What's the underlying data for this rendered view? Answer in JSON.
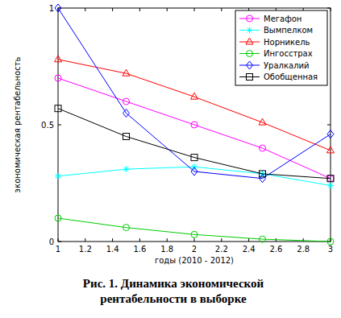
{
  "chart_data": {
    "type": "line",
    "title": "Рис. 1. Динамика экономической рентабельности в выборке",
    "x_label": "годы (2010 - 2012)",
    "y_label": "экономическая рентабельность",
    "x": [
      1,
      1.5,
      2,
      2.5,
      3
    ],
    "series": [
      {
        "name": "Мегафон",
        "color": "#ff00ff",
        "marker": "circle",
        "values": [
          0.7,
          0.6,
          0.5,
          0.4,
          0.27
        ]
      },
      {
        "name": "Вымпелком",
        "color": "#00ffff",
        "marker": "star",
        "values": [
          0.28,
          0.31,
          0.32,
          0.29,
          0.24
        ]
      },
      {
        "name": "Норникель",
        "color": "#ff0000",
        "marker": "triangle",
        "values": [
          0.78,
          0.72,
          0.62,
          0.51,
          0.39
        ]
      },
      {
        "name": "Ингосстрах",
        "color": "#00cc00",
        "marker": "circle",
        "values": [
          0.1,
          0.06,
          0.03,
          0.01,
          0.0
        ]
      },
      {
        "name": "Уралкалий",
        "color": "#0000ff",
        "marker": "diamond",
        "values": [
          1.0,
          0.55,
          0.3,
          0.27,
          0.46
        ]
      },
      {
        "name": "Обобщенная",
        "color": "#000000",
        "marker": "square",
        "values": [
          0.57,
          0.45,
          0.36,
          0.29,
          0.27
        ]
      }
    ],
    "xlim": [
      1,
      3
    ],
    "ylim": [
      0,
      1
    ],
    "xticks": [
      1,
      1.2,
      1.4,
      1.6,
      1.8,
      2,
      2.2,
      2.4,
      2.6,
      2.8,
      3
    ],
    "yticks": [
      0,
      0.5,
      1
    ],
    "grid": false,
    "legend": "northeast"
  }
}
